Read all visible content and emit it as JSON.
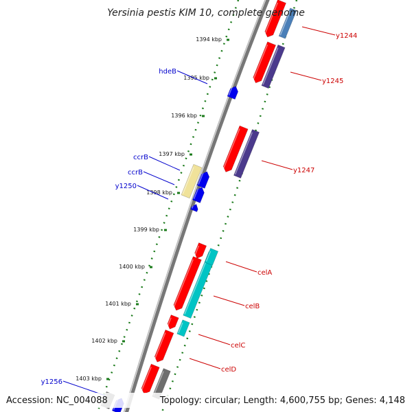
{
  "title": "Yersinia pestis KIM 10, complete genome",
  "footer": {
    "accession": "Accession: NC_004088",
    "summary": "Topology: circular; Length: 4,600,755 bp; Genes: 4,148"
  },
  "colors": {
    "background": "#ffffff",
    "backbone": "#777777",
    "tick": "#1a7a1a",
    "red_feature": "#ff0000",
    "blue_feature": "#0000ee",
    "purple_feature": "#4b3a8c",
    "steelblue_feature": "#4a7fb8",
    "cyan_feature": "#00c4c4",
    "gray_feature": "#6e6e6e",
    "yellow_feature": "#f0e29a",
    "forward_label": "#cc0000",
    "reverse_label": "#0000cc"
  },
  "kbp_marks": [
    {
      "label": "1394 kbp",
      "pos": 1394
    },
    {
      "label": "1395 kbp",
      "pos": 1395
    },
    {
      "label": "1396 kbp",
      "pos": 1396
    },
    {
      "label": "1397 kbp",
      "pos": 1397
    },
    {
      "label": "1398 kbp",
      "pos": 1398
    },
    {
      "label": "1399 kbp",
      "pos": 1399
    },
    {
      "label": "1400 kbp",
      "pos": 1400
    },
    {
      "label": "1401 kbp",
      "pos": 1401
    },
    {
      "label": "1402 kbp",
      "pos": 1402
    },
    {
      "label": "1403 kbp",
      "pos": 1403
    }
  ],
  "gene_labels": [
    {
      "name": "y1244",
      "strand": "forward"
    },
    {
      "name": "y1245",
      "strand": "forward"
    },
    {
      "name": "hdeB",
      "strand": "reverse"
    },
    {
      "name": "y1247",
      "strand": "forward"
    },
    {
      "name": "ccrB",
      "strand": "reverse"
    },
    {
      "name": "ccrB",
      "strand": "reverse"
    },
    {
      "name": "y1250",
      "strand": "reverse"
    },
    {
      "name": "celA",
      "strand": "forward"
    },
    {
      "name": "celB",
      "strand": "forward"
    },
    {
      "name": "celC",
      "strand": "forward"
    },
    {
      "name": "celD",
      "strand": "forward"
    },
    {
      "name": "y1256",
      "strand": "reverse"
    }
  ]
}
